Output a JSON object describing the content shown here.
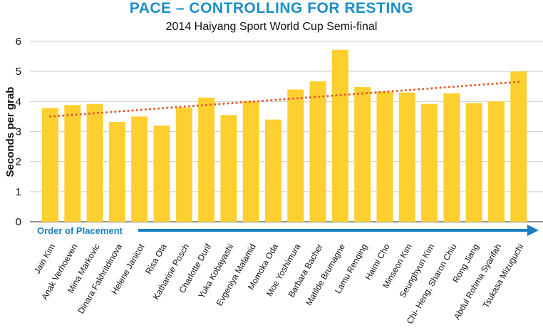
{
  "chart_data": {
    "type": "bar",
    "title": "PACE – CONTROLLING FOR RESTING",
    "subtitle": "2014 Haiyang Sport World Cup Semi-final",
    "ylabel": "Seconds per grab",
    "xlabel": "Order of Placement",
    "ylim": [
      0,
      6
    ],
    "yticks": [
      0,
      1,
      2,
      3,
      4,
      5,
      6
    ],
    "grid": true,
    "categories": [
      "Jain Kim",
      "Anak Verhoeven",
      "Mina Markovic",
      "Dinara Fakhritdinova",
      "Helene Janicot",
      "Risa Ota",
      "Katharine Posch",
      "Charlotte Durif",
      "Yuka Kobayashi",
      "Evgeniya Malamid",
      "Momoka Oda",
      "Moe Yoshimura",
      "Barbara Bacher",
      "Matilde Brumagne",
      "Lamu Renqing",
      "Haimi Cho",
      "Minseon Kim",
      "Seunghyun Kim",
      "Chi- Heng, Sharon Chiu",
      "Rong Jiang",
      "Abdul Rohma Syarifah",
      "Tsukasa Mizuguchi"
    ],
    "values": [
      3.78,
      3.88,
      3.92,
      3.32,
      3.5,
      3.2,
      3.8,
      4.13,
      3.55,
      4.02,
      3.4,
      4.4,
      4.67,
      5.72,
      4.48,
      4.33,
      4.3,
      3.92,
      4.27,
      3.95,
      4.0,
      5.0
    ],
    "trendline": {
      "type": "linear",
      "start": 3.5,
      "end": 4.65
    },
    "colors": {
      "bar": "#fed02f",
      "trend": "#e35a2e",
      "title": "#1a8fc9",
      "arrow": "#1a7fc0",
      "grid": "#cfcfcf"
    }
  }
}
